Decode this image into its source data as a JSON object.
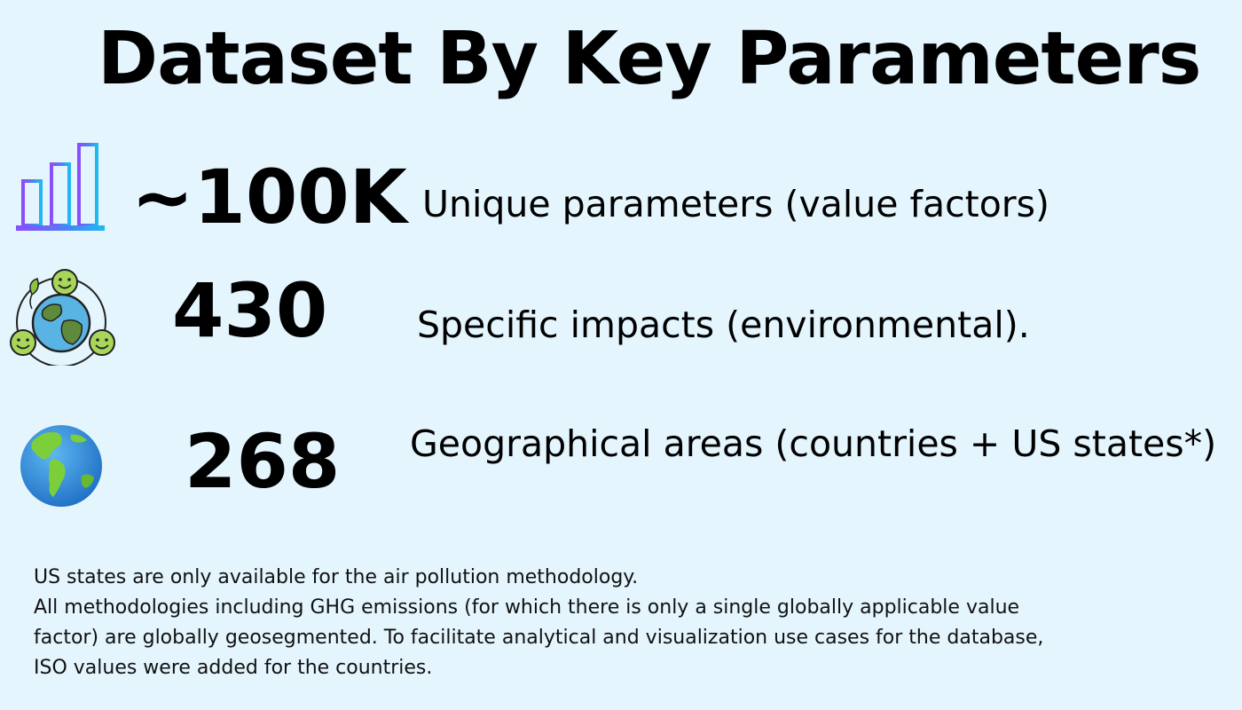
{
  "title": "Dataset By Key Parameters",
  "stats": [
    {
      "value": "~100K",
      "label": "Unique parameters (value factors)",
      "icon": "bar-chart-icon"
    },
    {
      "value": "430",
      "label": "Specific impacts (environmental).",
      "icon": "earth-smileys-icon"
    },
    {
      "value": "268",
      "label": "Geographical areas (countries + US states*)",
      "icon": "globe-americas-icon"
    }
  ],
  "footnote": {
    "lines": [
      "US states are only available for the air pollution methodology.",
      "All methodologies including GHG emissions (for which there is only a single globally applicable value",
      "factor) are globally geosegmented. To facilitate analytical and visualization use cases for the database,",
      "ISO values were added for the countries."
    ]
  }
}
